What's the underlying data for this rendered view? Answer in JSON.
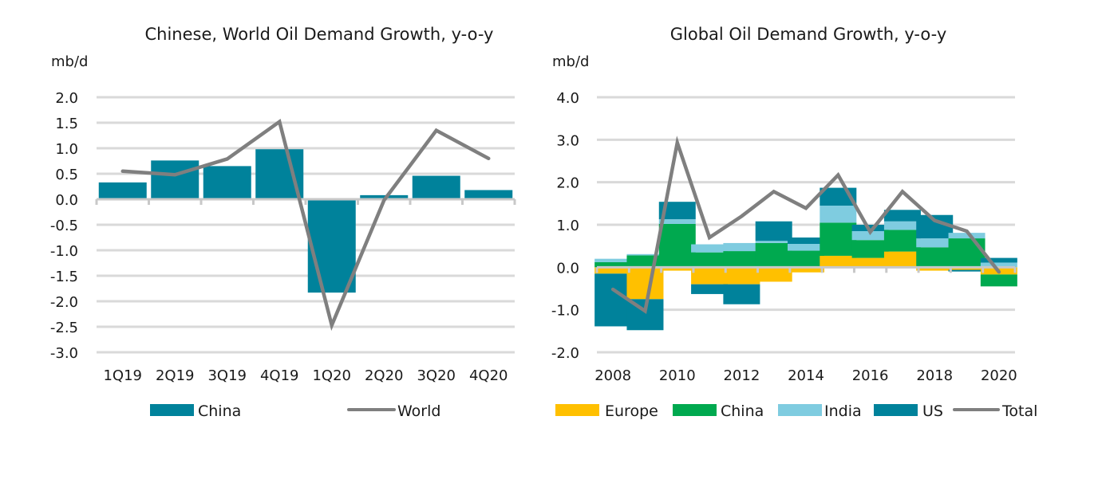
{
  "chart_data": [
    {
      "type": "bar",
      "title": "Chinese, World Oil Demand Growth, y-o-y",
      "ylabel": "mb/d",
      "xlabel": "",
      "ylim": [
        -3.0,
        2.0
      ],
      "ystep": 0.5,
      "yticks": [
        "2.0",
        "1.5",
        "1.0",
        "0.5",
        "0.0",
        "-0.5",
        "-1.0",
        "-1.5",
        "-2.0",
        "-2.5",
        "-3.0"
      ],
      "grid": true,
      "legend_position": "bottom",
      "categories": [
        "1Q19",
        "2Q19",
        "3Q19",
        "4Q19",
        "1Q20",
        "2Q20",
        "3Q20",
        "4Q20"
      ],
      "series": [
        {
          "name": "China",
          "type": "bar",
          "color": "#00829B",
          "values": [
            0.33,
            0.76,
            0.65,
            0.98,
            -1.83,
            0.08,
            0.46,
            0.18
          ]
        },
        {
          "name": "World",
          "type": "line",
          "color": "#7F7F7F",
          "values": [
            0.55,
            0.48,
            0.79,
            1.52,
            -2.47,
            -0.02,
            1.35,
            0.8
          ]
        }
      ]
    },
    {
      "type": "bar",
      "stacked": true,
      "title": "Global Oil Demand Growth, y-o-y",
      "ylabel": "mb/d",
      "xlabel": "",
      "ylim": [
        -2.0,
        4.0
      ],
      "ystep": 1.0,
      "yticks": [
        "4.0",
        "3.0",
        "2.0",
        "1.0",
        "0.0",
        "-1.0",
        "-2.0"
      ],
      "grid": true,
      "legend_position": "bottom",
      "categories": [
        "2008",
        "2009",
        "2010",
        "2011",
        "2012",
        "2013",
        "2014",
        "2015",
        "2016",
        "2017",
        "2018",
        "2019",
        "2020"
      ],
      "xtick_labels": [
        "2008",
        "2010",
        "2012",
        "2014",
        "2016",
        "2018",
        "2020"
      ],
      "series": [
        {
          "name": "Europe",
          "type": "bar",
          "color": "#FFC000",
          "values": [
            -0.15,
            -0.75,
            -0.08,
            -0.4,
            -0.4,
            -0.34,
            -0.12,
            0.27,
            0.22,
            0.37,
            -0.08,
            -0.06,
            -0.17
          ]
        },
        {
          "name": "China",
          "type": "bar",
          "color": "#00A94F",
          "values": [
            0.12,
            0.28,
            1.02,
            0.35,
            0.38,
            0.57,
            0.39,
            0.78,
            0.42,
            0.51,
            0.47,
            0.68,
            -0.28
          ]
        },
        {
          "name": "India",
          "type": "bar",
          "color": "#7FCCE0",
          "values": [
            0.08,
            0.03,
            0.11,
            0.19,
            0.19,
            0.05,
            0.16,
            0.4,
            0.21,
            0.2,
            0.21,
            0.13,
            0.11
          ]
        },
        {
          "name": "US",
          "type": "bar",
          "color": "#00829B",
          "values": [
            -1.24,
            -0.73,
            0.41,
            -0.23,
            -0.47,
            0.46,
            0.15,
            0.42,
            0.15,
            0.27,
            0.55,
            -0.04,
            0.11
          ]
        },
        {
          "name": "Total",
          "type": "line",
          "color": "#7F7F7F",
          "values": [
            -0.52,
            -1.03,
            2.93,
            0.7,
            1.2,
            1.78,
            1.39,
            2.17,
            0.83,
            1.78,
            1.1,
            0.85,
            -0.11
          ]
        }
      ]
    }
  ]
}
